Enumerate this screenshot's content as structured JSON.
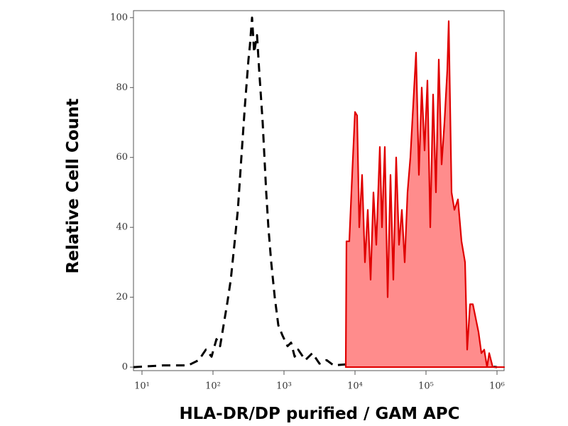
{
  "chart_data": {
    "type": "histogram-overlay",
    "x_label": "HLA-DR/DP purified / GAM APC",
    "y_label": "Relative Cell Count",
    "xscale": "log",
    "xlim": [
      7.59,
      1258925
    ],
    "ylim": [
      -1,
      102
    ],
    "xticks": [
      {
        "value": 10,
        "label": "10¹"
      },
      {
        "value": 100,
        "label": "10²"
      },
      {
        "value": 1000,
        "label": "10³"
      },
      {
        "value": 10000,
        "label": "10⁴"
      },
      {
        "value": 100000,
        "label": "10⁵"
      },
      {
        "value": 1000000,
        "label": "10⁶"
      }
    ],
    "yticks": [
      0,
      20,
      40,
      60,
      80,
      100
    ],
    "series": [
      {
        "color": "#000000",
        "linestyle": "dashed",
        "filled": false,
        "x": [
          7.59,
          20,
          44.7,
          63.1,
          79.4,
          95.5,
          112,
          126,
          141,
          158,
          178,
          200,
          224,
          251,
          282,
          316,
          331,
          355,
          380,
          417,
          447,
          501,
          562,
          603,
          661,
          741,
          832,
          955,
          1122,
          1259,
          1413,
          1585,
          1995,
          2512,
          3162,
          3981,
          5012,
          10000,
          25119,
          63096,
          158489,
          398107,
          1000000
        ],
        "values": [
          0,
          0.5,
          0.5,
          2,
          5,
          3,
          8,
          6,
          12,
          18,
          25,
          35,
          45,
          60,
          75,
          88,
          92,
          100,
          90,
          95,
          85,
          70,
          50,
          40,
          30,
          20,
          12,
          9,
          6,
          7,
          3,
          5,
          2,
          4,
          1,
          2,
          0.5,
          1,
          0.5,
          1,
          0.5,
          1,
          0
        ]
      },
      {
        "color": "#e00000",
        "fill_color": "#ff8c8c",
        "linestyle": "solid",
        "filled": true,
        "x": [
          7413,
          7586,
          8318,
          9120,
          10000,
          10715,
          11482,
          12589,
          13804,
          15136,
          16596,
          18197,
          19953,
          22387,
          23988,
          26303,
          28840,
          31623,
          34674,
          38019,
          41687,
          45709,
          50119,
          54954,
          60256,
          66069,
          72444,
          79433,
          87096,
          95499,
          104713,
          114815,
          125893,
          138038,
          151356,
          165959,
          181970,
          199526,
          208930,
          229087,
          251189,
          281838,
          316228,
          354813,
          380189,
          416869,
          457088,
          501187,
          549541,
          602560,
          660693,
          724436,
          776247,
          870964,
          1258925
        ],
        "values": [
          0,
          36,
          36,
          55,
          73,
          72,
          40,
          55,
          30,
          45,
          25,
          50,
          35,
          63,
          40,
          63,
          20,
          55,
          25,
          60,
          35,
          45,
          30,
          50,
          60,
          75,
          90,
          55,
          80,
          62,
          82,
          40,
          78,
          50,
          88,
          58,
          70,
          85,
          99,
          50,
          45,
          48,
          36,
          30,
          5,
          18,
          18,
          14,
          10,
          4,
          5,
          0,
          4,
          0,
          0
        ]
      }
    ]
  }
}
